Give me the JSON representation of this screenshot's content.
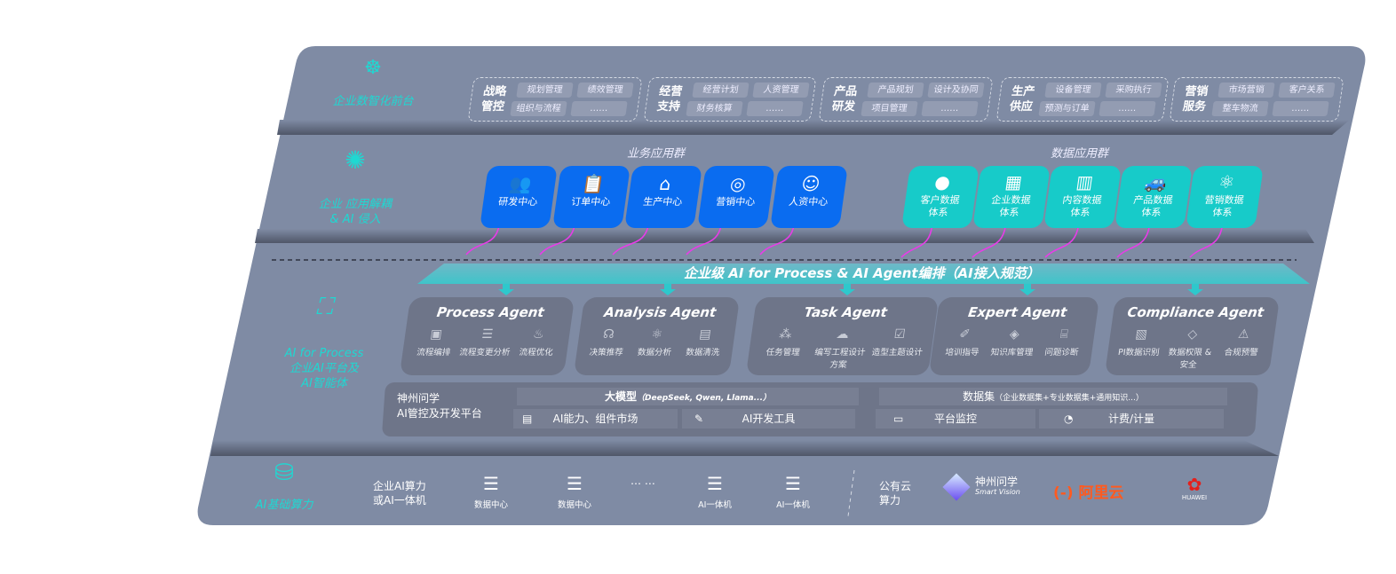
{
  "colors": {
    "panel": "#7f8ba4",
    "accent_cyan": "#1fd8d2",
    "business_blue": "#0a6cf0",
    "data_teal": "#17cbc9",
    "arrow_magenta": "#e83ce8",
    "agent_card": "#6e7589"
  },
  "front": {
    "label": "企业数智化前台",
    "icon": "brain-icon",
    "groups": [
      {
        "title": "战略管控",
        "items": [
          "规划管理",
          "绩效管理",
          "组织与流程",
          "……"
        ]
      },
      {
        "title": "经营支持",
        "items": [
          "经营计划",
          "人资管理",
          "财务核算",
          "……"
        ]
      },
      {
        "title": "产品研发",
        "items": [
          "产品规划",
          "设计及协同",
          "项目管理",
          "……"
        ]
      },
      {
        "title": "生产供应",
        "items": [
          "设备管理",
          "采购执行",
          "预测与订单",
          "……"
        ]
      },
      {
        "title": "营销服务",
        "items": [
          "市场营销",
          "客户关系",
          "整车物流",
          "……"
        ]
      }
    ]
  },
  "apps": {
    "label_line1": "企业 应用解耦",
    "label_line2": "& AI 侵入",
    "icon": "molecule-icon",
    "business_title": "业务应用群",
    "data_title": "数据应用群",
    "business": [
      {
        "label": "研发中心",
        "icon": "users-icon"
      },
      {
        "label": "订单中心",
        "icon": "clipboard-icon"
      },
      {
        "label": "生产中心",
        "icon": "factory-icon"
      },
      {
        "label": "营销中心",
        "icon": "target-icon"
      },
      {
        "label": "人资中心",
        "icon": "person-icon"
      }
    ],
    "data": [
      {
        "l1": "客户数据",
        "l2": "体系",
        "icon": "user-icon"
      },
      {
        "l1": "企业数据",
        "l2": "体系",
        "icon": "building-icon"
      },
      {
        "l1": "内容数据",
        "l2": "体系",
        "icon": "books-icon"
      },
      {
        "l1": "产品数据",
        "l2": "体系",
        "icon": "car-icon"
      },
      {
        "l1": "营销数据",
        "l2": "体系",
        "icon": "atom-icon"
      }
    ]
  },
  "orchestration": {
    "title": "企业级 AI for Process & AI Agent编排（AI接入规范）"
  },
  "ai": {
    "label_line1": "AI for Process",
    "label_line2": "企业AI平台及",
    "label_line3": "AI智能体",
    "icon": "face-scan-icon",
    "agents": [
      {
        "title": "Process Agent",
        "items": [
          {
            "label": "流程编排",
            "icon": "chart-icon"
          },
          {
            "label": "流程变更分析",
            "icon": "list-icon"
          },
          {
            "label": "流程优化",
            "icon": "tune-icon"
          }
        ]
      },
      {
        "title": "Analysis Agent",
        "items": [
          {
            "label": "决策推荐",
            "icon": "head-icon"
          },
          {
            "label": "数据分析",
            "icon": "atom-icon"
          },
          {
            "label": "数据清洗",
            "icon": "doc-icon"
          }
        ]
      },
      {
        "title": "Task Agent",
        "items": [
          {
            "label": "任务管理",
            "icon": "network-icon"
          },
          {
            "label": "编写工程设计方案",
            "icon": "cloud-icon"
          },
          {
            "label": "造型主题设计",
            "icon": "checklist-icon"
          }
        ]
      },
      {
        "title": "Expert Agent",
        "items": [
          {
            "label": "培训指导",
            "icon": "teach-icon"
          },
          {
            "label": "知识库管理",
            "icon": "layers-icon"
          },
          {
            "label": "问题诊断",
            "icon": "diagnose-icon"
          }
        ]
      },
      {
        "title": "Compliance Agent",
        "items": [
          {
            "label": "PI数据识别",
            "icon": "id-icon"
          },
          {
            "label": "数据权限 & 安全",
            "icon": "shield-icon"
          },
          {
            "label": "合规预警",
            "icon": "alert-icon"
          }
        ]
      }
    ],
    "platform": {
      "title_line1": "神州问学",
      "title_line2": "AI管控及开发平台",
      "model": "大模型",
      "model_note": "（DeepSeek, Qwen, Llama...）",
      "market": "AI能力、组件市场",
      "devtools": "AI开发工具",
      "dataset": "数据集",
      "dataset_note": "（企业数据集+专业数据集+通用知识...）",
      "monitor": "平台监控",
      "billing": "计费/计量"
    }
  },
  "compute": {
    "label": "AI基础算力",
    "icon": "database-icon",
    "enterprise_line1": "企业AI算力",
    "enterprise_line2": "或AI一体机",
    "servers": [
      "数据中心",
      "数据中心",
      "AI一体机",
      "AI一体机"
    ],
    "ellipsis": "… …",
    "public_line1": "公有云",
    "public_line2": "算力",
    "vendors": {
      "smartvision_cn": "神州问学",
      "smartvision_en": "Smart Vision",
      "aliyun": "阿里云",
      "huawei": "HUAWEI"
    }
  }
}
